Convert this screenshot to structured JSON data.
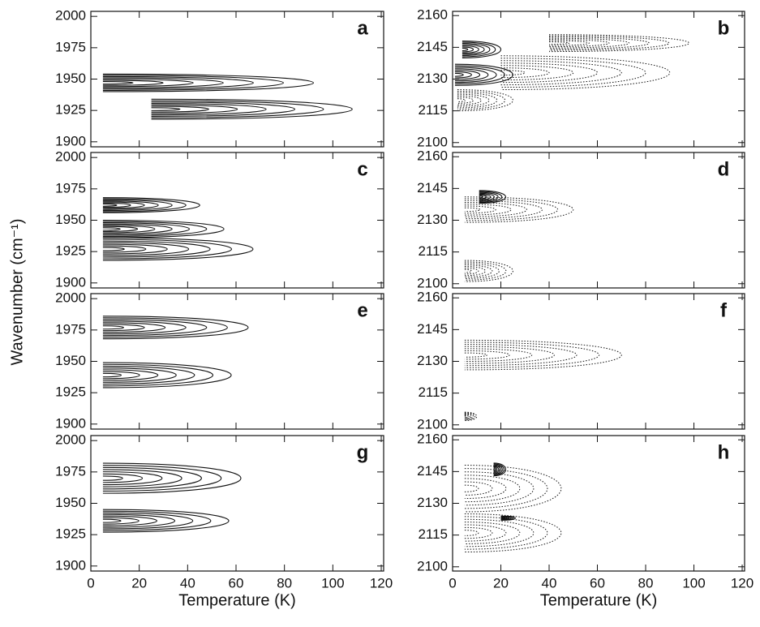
{
  "y_label": "Wavenumber (cm⁻¹)",
  "chart_data": [
    {
      "type": "contour",
      "title": "a",
      "xlim": [
        0,
        121
      ],
      "ylim": [
        1896,
        2004
      ],
      "xticks": [
        0,
        20,
        40,
        60,
        80,
        100,
        120
      ],
      "yticks": [
        1900,
        1925,
        1950,
        1975,
        2000
      ],
      "lobes": [
        {
          "x": [
            5,
            92
          ],
          "y": 1947,
          "h": 7,
          "style": "solid"
        },
        {
          "x": [
            25,
            108
          ],
          "y": 1926,
          "h": 8,
          "style": "solid"
        }
      ]
    },
    {
      "type": "contour",
      "title": "b",
      "xlim": [
        0,
        121
      ],
      "ylim": [
        2098,
        2162
      ],
      "xticks": [
        0,
        20,
        40,
        60,
        80,
        100,
        120
      ],
      "yticks": [
        2100,
        2115,
        2130,
        2145,
        2160
      ],
      "lobes": [
        {
          "x": [
            20,
            90
          ],
          "y": 2133,
          "h": 8,
          "style": "dotted"
        },
        {
          "x": [
            40,
            98
          ],
          "y": 2147,
          "h": 4,
          "style": "dotted"
        },
        {
          "x": [
            2,
            25
          ],
          "y": 2120,
          "h": 5,
          "style": "dotted"
        },
        {
          "x": [
            1,
            25
          ],
          "y": 2132,
          "h": 5,
          "style": "solid"
        },
        {
          "x": [
            4,
            20
          ],
          "y": 2144,
          "h": 4,
          "style": "solid"
        }
      ]
    },
    {
      "type": "contour",
      "title": "c",
      "xlim": [
        0,
        121
      ],
      "ylim": [
        1896,
        2004
      ],
      "xticks": [
        0,
        20,
        40,
        60,
        80,
        100,
        120
      ],
      "yticks": [
        1900,
        1925,
        1950,
        1975,
        2000
      ],
      "lobes": [
        {
          "x": [
            5,
            67
          ],
          "y": 1927,
          "h": 9,
          "style": "solid"
        },
        {
          "x": [
            5,
            55
          ],
          "y": 1943,
          "h": 7,
          "style": "solid"
        },
        {
          "x": [
            5,
            45
          ],
          "y": 1962,
          "h": 6,
          "style": "solid"
        }
      ]
    },
    {
      "type": "contour",
      "title": "d",
      "xlim": [
        0,
        121
      ],
      "ylim": [
        2098,
        2162
      ],
      "xticks": [
        0,
        20,
        40,
        60,
        80,
        100,
        120
      ],
      "yticks": [
        2100,
        2115,
        2130,
        2145,
        2160
      ],
      "lobes": [
        {
          "x": [
            5,
            50
          ],
          "y": 2135,
          "h": 6,
          "style": "dotted"
        },
        {
          "x": [
            5,
            25
          ],
          "y": 2106,
          "h": 5,
          "style": "dotted"
        },
        {
          "x": [
            11,
            22
          ],
          "y": 2141,
          "h": 3,
          "style": "solid"
        }
      ]
    },
    {
      "type": "contour",
      "title": "e",
      "xlim": [
        0,
        121
      ],
      "ylim": [
        1896,
        2004
      ],
      "xticks": [
        0,
        20,
        40,
        60,
        80,
        100,
        120
      ],
      "yticks": [
        1900,
        1925,
        1950,
        1975,
        2000
      ],
      "lobes": [
        {
          "x": [
            5,
            65
          ],
          "y": 1977,
          "h": 9,
          "style": "solid"
        },
        {
          "x": [
            5,
            58
          ],
          "y": 1939,
          "h": 10,
          "style": "solid"
        }
      ]
    },
    {
      "type": "contour",
      "title": "f",
      "xlim": [
        0,
        121
      ],
      "ylim": [
        2098,
        2162
      ],
      "xticks": [
        0,
        20,
        40,
        60,
        80,
        100,
        120
      ],
      "yticks": [
        2100,
        2115,
        2130,
        2145,
        2160
      ],
      "lobes": [
        {
          "x": [
            5,
            70
          ],
          "y": 2133,
          "h": 7,
          "style": "dotted"
        },
        {
          "x": [
            5,
            10
          ],
          "y": 2104,
          "h": 2,
          "style": "dotted"
        }
      ]
    },
    {
      "type": "contour",
      "title": "g",
      "xlim": [
        0,
        121
      ],
      "ylim": [
        1896,
        2004
      ],
      "xticks": [
        0,
        20,
        40,
        60,
        80,
        100,
        120
      ],
      "yticks": [
        1900,
        1925,
        1950,
        1975,
        2000
      ],
      "lobes": [
        {
          "x": [
            5,
            62
          ],
          "y": 1970,
          "h": 12,
          "style": "solid"
        },
        {
          "x": [
            5,
            57
          ],
          "y": 1936,
          "h": 9,
          "style": "solid"
        }
      ],
      "x_label": "Temperature (K)"
    },
    {
      "type": "contour",
      "title": "h",
      "xlim": [
        0,
        121
      ],
      "ylim": [
        2098,
        2162
      ],
      "xticks": [
        0,
        20,
        40,
        60,
        80,
        100,
        120
      ],
      "yticks": [
        2100,
        2115,
        2130,
        2145,
        2160
      ],
      "lobes": [
        {
          "x": [
            5,
            45
          ],
          "y": 2137,
          "h": 11,
          "style": "dotted"
        },
        {
          "x": [
            5,
            45
          ],
          "y": 2116,
          "h": 9,
          "style": "dotted"
        },
        {
          "x": [
            17,
            22
          ],
          "y": 2146,
          "h": 3,
          "style": "solid"
        },
        {
          "x": [
            20,
            26
          ],
          "y": 2123,
          "h": 1,
          "style": "solid"
        }
      ],
      "x_label": "Temperature (K)"
    }
  ]
}
